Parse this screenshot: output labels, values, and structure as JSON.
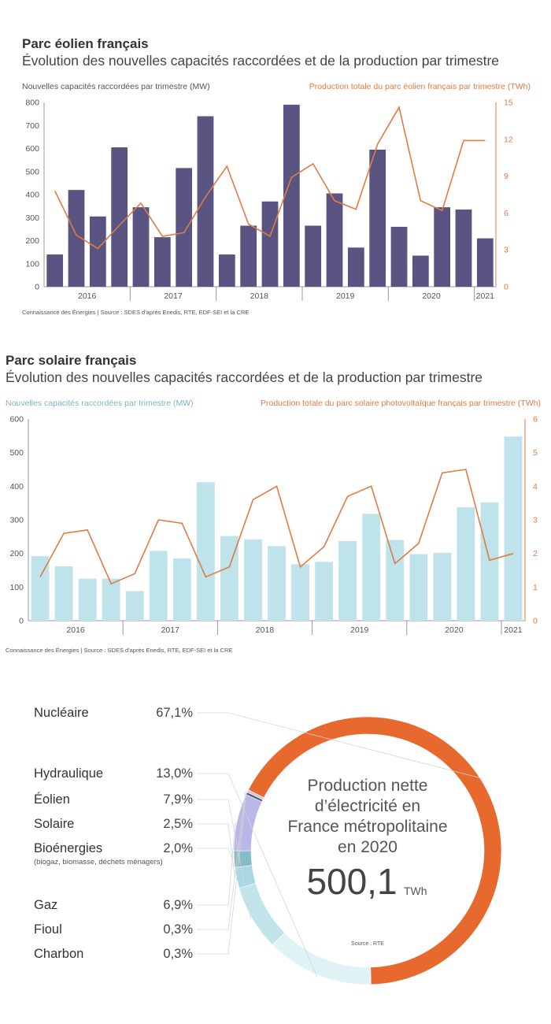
{
  "chart_data": [
    {
      "type": "bar+line",
      "title": "Parc éolien français",
      "subtitle": "Évolution des nouvelles capacités raccordées et de la production par trimestre",
      "ylabel_left": "Nouvelles capacités raccordées par trimestre (MW)",
      "ylabel_right": "Production totale du parc éolien français par trimestre (TWh)",
      "ylim_left": [
        0,
        800
      ],
      "ylim_right": [
        0,
        15
      ],
      "yticks_left": [
        0,
        100,
        200,
        300,
        400,
        500,
        600,
        700,
        800
      ],
      "yticks_right": [
        0,
        3,
        6,
        9,
        12,
        15
      ],
      "years": [
        "2016",
        "2017",
        "2018",
        "2019",
        "2020",
        "2021"
      ],
      "series": [
        {
          "name": "Nouvelles capacités raccordées par trimestre (MW)",
          "type": "bar",
          "values": [
            140,
            420,
            305,
            605,
            345,
            215,
            515,
            740,
            140,
            265,
            370,
            790,
            265,
            405,
            170,
            595,
            260,
            135,
            345,
            335,
            210
          ]
        },
        {
          "name": "Production totale du parc éolien français par trimestre (TWh)",
          "type": "line",
          "values": [
            7.8,
            4.2,
            3.1,
            5.0,
            6.8,
            4.1,
            4.4,
            7.3,
            9.8,
            5.1,
            4.1,
            8.9,
            10.0,
            7.0,
            6.3,
            11.6,
            14.6,
            7.0,
            6.2,
            11.9,
            11.9
          ]
        }
      ],
      "colors": {
        "bar": "#5a5483",
        "line": "#e07b45"
      },
      "source": "Connaissance des Énergies | Source : SDES d'après Enedis, RTE, EDF-SEI et la CRE"
    },
    {
      "type": "bar+line",
      "title": "Parc solaire français",
      "subtitle": "Évolution des nouvelles capacités raccordées et de la production par trimestre",
      "ylabel_left": "Nouvelles capacités raccordées par trimestre (MW)",
      "ylabel_right": "Production totale du parc solaire photovoltaïque français par trimestre (TWh)",
      "ylim_left": [
        0,
        600
      ],
      "ylim_right": [
        0,
        6
      ],
      "yticks_left": [
        0,
        100,
        200,
        300,
        400,
        500,
        600
      ],
      "yticks_right": [
        0,
        1,
        2,
        3,
        4,
        5,
        6
      ],
      "years": [
        "2016",
        "2017",
        "2018",
        "2019",
        "2020",
        "2021"
      ],
      "series": [
        {
          "name": "Nouvelles capacités raccordées par trimestre (MW)",
          "type": "bar",
          "values": [
            192,
            162,
            125,
            125,
            88,
            208,
            185,
            412,
            252,
            242,
            222,
            168,
            175,
            237,
            318,
            240,
            198,
            202,
            338,
            352,
            548
          ]
        },
        {
          "name": "Production totale du parc solaire photovoltaïque français par trimestre (TWh)",
          "type": "line",
          "values": [
            1.3,
            2.6,
            2.7,
            1.1,
            1.4,
            3.0,
            2.9,
            1.3,
            1.6,
            3.6,
            4.0,
            1.6,
            2.2,
            3.7,
            4.0,
            1.7,
            2.3,
            4.4,
            4.5,
            1.8,
            2.0
          ]
        }
      ],
      "colors": {
        "bar": "#bfe3ea",
        "line": "#e07b45"
      },
      "source": "Connaissance des Énergies | Source : SDES d'après Enedis, RTE, EDF-SEI et la CRE"
    },
    {
      "type": "pie",
      "title": "Production nette d’électricité en France métropolitaine en 2020",
      "total_value": "500,1",
      "total_unit": "TWh",
      "source": "Source : RTE",
      "slices": [
        {
          "label": "Nucléaire",
          "value_label": "67,1%",
          "value": 67.1,
          "color": "#e8692e"
        },
        {
          "label": "Hydraulique",
          "value_label": "13,0%",
          "value": 13.0,
          "color": "#dff2f4"
        },
        {
          "label": "Éolien",
          "value_label": "7,9%",
          "value": 7.9,
          "color": "#c0e4ea"
        },
        {
          "label": "Solaire",
          "value_label": "2,5%",
          "value": 2.5,
          "color": "#a9d8e2"
        },
        {
          "label": "Bioénergies",
          "sublabel": "(biogaz, biomasse, déchets ménagers)",
          "value_label": "2,0%",
          "value": 2.0,
          "color": "#86bcc8"
        },
        {
          "label": "Gaz",
          "value_label": "6,9%",
          "value": 6.9,
          "color": "#b9b6e8"
        },
        {
          "label": "Fioul",
          "value_label": "0,3%",
          "value": 0.3,
          "color": "#5a5483"
        },
        {
          "label": "Charbon",
          "value_label": "0,3%",
          "value": 0.3,
          "color": "#c9c9c9"
        }
      ]
    }
  ]
}
